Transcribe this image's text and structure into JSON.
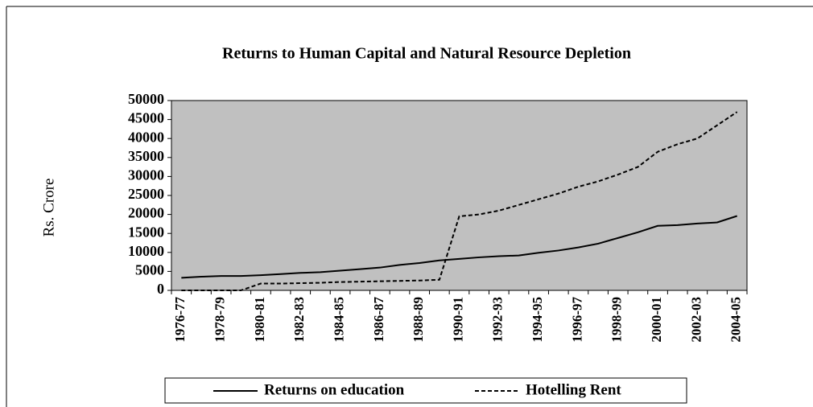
{
  "chart_data": {
    "type": "line",
    "title": "Returns to Human Capital and Natural Resource Depletion",
    "y_label": "Rs. Crore",
    "categories": [
      "1976-77",
      null,
      "1978-79",
      null,
      "1980-81",
      null,
      "1982-83",
      null,
      "1984-85",
      null,
      "1986-87",
      null,
      "1988-89",
      null,
      "1990-91",
      null,
      "1992-93",
      null,
      "1994-95",
      null,
      "1996-97",
      null,
      "1998-99",
      null,
      "2000-01",
      null,
      "2002-03",
      null,
      "2004-05"
    ],
    "series": [
      {
        "name": "Returns on education",
        "color": "#000000",
        "line_style": "solid",
        "values": [
          3300,
          3600,
          3800,
          3800,
          4000,
          4300,
          4600,
          4800,
          5200,
          5600,
          6000,
          6700,
          7200,
          7900,
          8300,
          8700,
          9000,
          9200,
          9900,
          10500,
          11300,
          12300,
          13800,
          15300,
          17000,
          17200,
          17600,
          17900,
          19600
        ]
      },
      {
        "name": "Hotelling Rent",
        "color": "#000000",
        "line_style": "dashed",
        "values": [
          0,
          0,
          0,
          0,
          1800,
          1800,
          1900,
          2000,
          2200,
          2300,
          2400,
          2500,
          2600,
          2800,
          19500,
          20000,
          21000,
          22500,
          24000,
          25500,
          27300,
          28700,
          30500,
          32500,
          36500,
          38500,
          40000,
          43500,
          47000
        ]
      }
    ],
    "ylim": [
      0,
      50000
    ],
    "yticks": [
      0,
      5000,
      10000,
      15000,
      20000,
      25000,
      30000,
      35000,
      40000,
      45000,
      50000
    ],
    "plot_background": "#c0c0c0",
    "grid": false,
    "legend": "bottom"
  }
}
